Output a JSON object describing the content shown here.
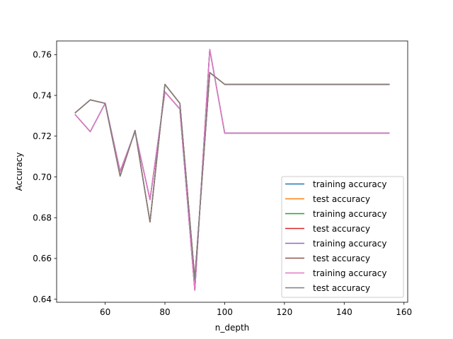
{
  "chart_data": {
    "type": "line",
    "title": "",
    "xlabel": "n_depth",
    "ylabel": "Accuracy",
    "xlim": [
      43.75,
      161.25
    ],
    "ylim": [
      0.6385,
      0.7667
    ],
    "xticks": [
      60,
      80,
      100,
      120,
      140,
      160
    ],
    "yticks": [
      0.64,
      0.66,
      0.68,
      0.7,
      0.72,
      0.74,
      0.76
    ],
    "ytick_labels": [
      "0.64",
      "0.66",
      "0.68",
      "0.70",
      "0.72",
      "0.74",
      "0.76"
    ],
    "grid": false,
    "legend_position": "lower-right",
    "x": [
      50,
      55,
      60,
      65,
      70,
      75,
      80,
      85,
      90,
      95,
      100,
      105,
      110,
      115,
      120,
      125,
      130,
      135,
      140,
      145,
      150,
      155
    ],
    "series": [
      {
        "name": "training accuracy",
        "color": "#1f77b4",
        "values": [
          0.7305,
          0.7222,
          0.7361,
          0.7027,
          0.7222,
          0.6889,
          0.7417,
          0.7333,
          0.6444,
          0.7625,
          0.7215,
          0.7215,
          0.7215,
          0.7215,
          0.7215,
          0.7215,
          0.7215,
          0.7215,
          0.7215,
          0.7215,
          0.7215,
          0.7215
        ]
      },
      {
        "name": "test accuracy",
        "color": "#ff7f0e",
        "values": [
          0.7315,
          0.7378,
          0.7361,
          0.7004,
          0.7228,
          0.6779,
          0.7454,
          0.7361,
          0.6498,
          0.7512,
          0.7454,
          0.7454,
          0.7454,
          0.7454,
          0.7454,
          0.7454,
          0.7454,
          0.7454,
          0.7454,
          0.7454,
          0.7454,
          0.7454
        ]
      },
      {
        "name": "training accuracy",
        "color": "#2ca02c",
        "values": [
          0.7305,
          0.7222,
          0.7361,
          0.7027,
          0.7222,
          0.6889,
          0.7417,
          0.7333,
          0.6444,
          0.7625,
          0.7215,
          0.7215,
          0.7215,
          0.7215,
          0.7215,
          0.7215,
          0.7215,
          0.7215,
          0.7215,
          0.7215,
          0.7215,
          0.7215
        ]
      },
      {
        "name": "test accuracy",
        "color": "#d62728",
        "values": [
          0.7315,
          0.7378,
          0.7361,
          0.7004,
          0.7228,
          0.6779,
          0.7454,
          0.7361,
          0.6498,
          0.7512,
          0.7454,
          0.7454,
          0.7454,
          0.7454,
          0.7454,
          0.7454,
          0.7454,
          0.7454,
          0.7454,
          0.7454,
          0.7454,
          0.7454
        ]
      },
      {
        "name": "training accuracy",
        "color": "#9467bd",
        "values": [
          0.7305,
          0.7222,
          0.7361,
          0.7027,
          0.7222,
          0.6889,
          0.7417,
          0.7333,
          0.6444,
          0.7625,
          0.7215,
          0.7215,
          0.7215,
          0.7215,
          0.7215,
          0.7215,
          0.7215,
          0.7215,
          0.7215,
          0.7215,
          0.7215,
          0.7215
        ]
      },
      {
        "name": "test accuracy",
        "color": "#8c564b",
        "values": [
          0.7315,
          0.7378,
          0.7361,
          0.7004,
          0.7228,
          0.6779,
          0.7454,
          0.7361,
          0.6498,
          0.7512,
          0.7454,
          0.7454,
          0.7454,
          0.7454,
          0.7454,
          0.7454,
          0.7454,
          0.7454,
          0.7454,
          0.7454,
          0.7454,
          0.7454
        ]
      },
      {
        "name": "training accuracy",
        "color": "#e377c2",
        "values": [
          0.7305,
          0.7222,
          0.7361,
          0.7027,
          0.7222,
          0.6889,
          0.7417,
          0.7333,
          0.6444,
          0.7625,
          0.7215,
          0.7215,
          0.7215,
          0.7215,
          0.7215,
          0.7215,
          0.7215,
          0.7215,
          0.7215,
          0.7215,
          0.7215,
          0.7215
        ]
      },
      {
        "name": "test accuracy",
        "color": "#7f7f7f",
        "values": [
          0.7315,
          0.7378,
          0.7361,
          0.7004,
          0.7228,
          0.6779,
          0.7454,
          0.7361,
          0.6498,
          0.7512,
          0.7454,
          0.7454,
          0.7454,
          0.7454,
          0.7454,
          0.7454,
          0.7454,
          0.7454,
          0.7454,
          0.7454,
          0.7454,
          0.7454
        ]
      }
    ]
  }
}
